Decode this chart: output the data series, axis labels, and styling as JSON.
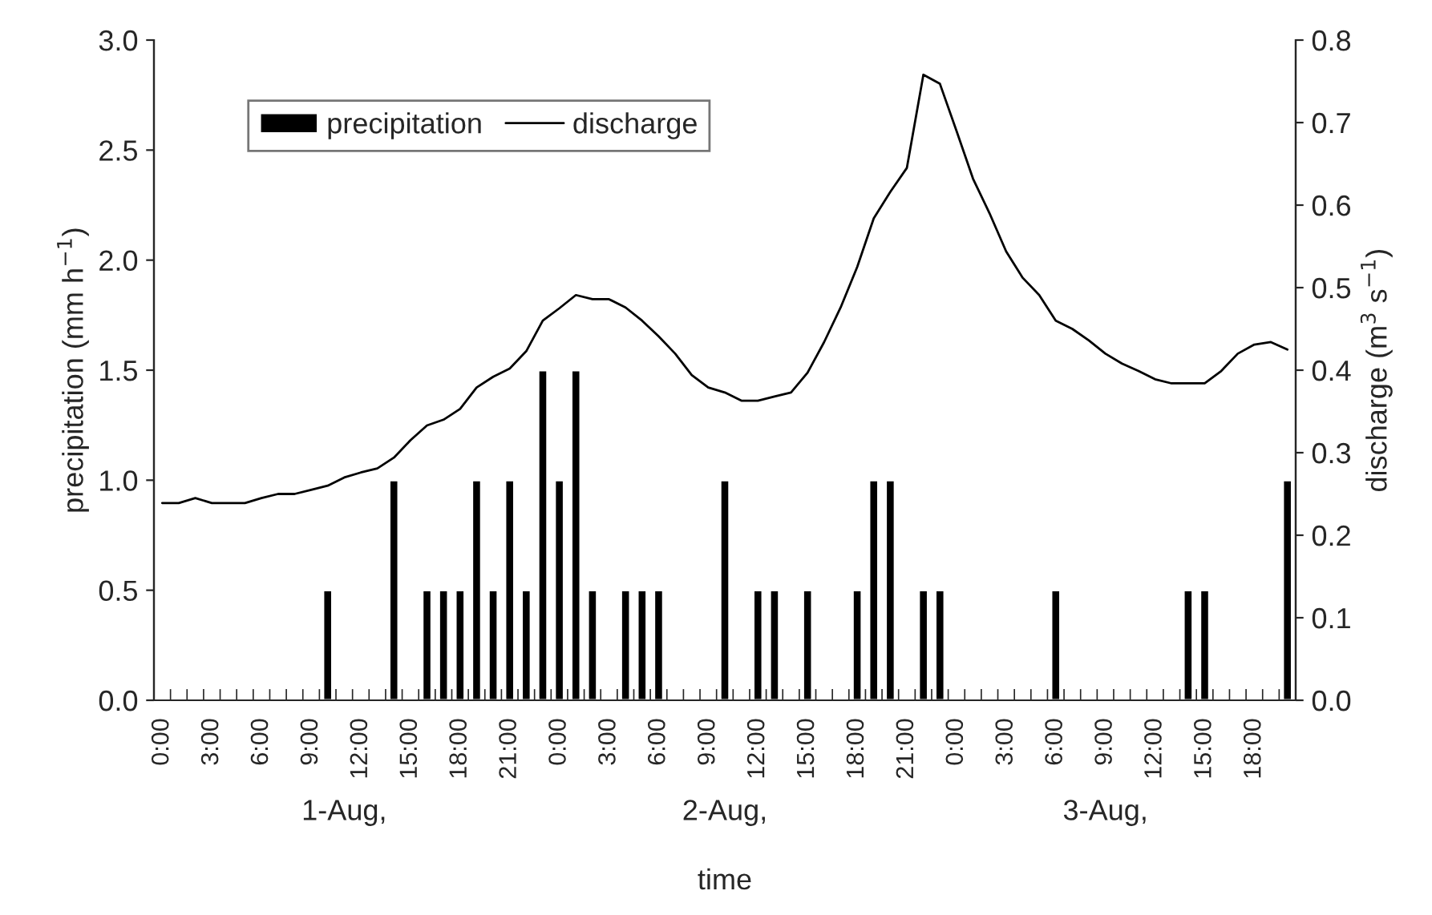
{
  "chart_data": {
    "type": "bar",
    "xlabel": "time",
    "ylabel": "precipitation (mm h$^{−1}$)",
    "y2label": "discharge (m$^{3}$ s$^{−1}$)",
    "categories": [
      "0:00",
      null,
      null,
      "3:00",
      null,
      null,
      "6:00",
      null,
      null,
      "9:00",
      null,
      null,
      "12:00",
      null,
      null,
      "15:00",
      null,
      null,
      "18:00",
      null,
      null,
      "21:00",
      null,
      null,
      "0:00",
      null,
      null,
      "3:00",
      null,
      null,
      "6:00",
      null,
      null,
      "9:00",
      null,
      null,
      "12:00",
      null,
      null,
      "15:00",
      null,
      null,
      "18:00",
      null,
      null,
      "21:00",
      null,
      null,
      "0:00",
      null,
      null,
      "3:00",
      null,
      null,
      "6:00",
      null,
      null,
      "9:00",
      null,
      null,
      "12:00",
      null,
      null,
      "15:00",
      null,
      null,
      "18:00",
      null,
      null
    ],
    "series": [
      {
        "name": "precipitation",
        "color": "#000000",
        "values": [
          0,
          0,
          0,
          0,
          0,
          0,
          0,
          0,
          0,
          0,
          0.5,
          0,
          0,
          0,
          1.0,
          0,
          0.5,
          0.5,
          0.5,
          1.0,
          0.5,
          1.0,
          0.5,
          1.5,
          1.0,
          1.5,
          0.5,
          0,
          0.5,
          0.5,
          0.5,
          0,
          0,
          0,
          1.0,
          0,
          0.5,
          0.5,
          0,
          0.5,
          0,
          0,
          0.5,
          1.0,
          1.0,
          0,
          0.5,
          0.5,
          0,
          0,
          0,
          0,
          0,
          0,
          0.5,
          0,
          0,
          0,
          0,
          0,
          0,
          0,
          0.5,
          0.5,
          0,
          0,
          0,
          0,
          1.0
        ]
      },
      {
        "name": "discharge",
        "type": "line",
        "axis": "y2",
        "color": "#000000",
        "values": [
          0.239,
          0.239,
          0.245,
          0.239,
          0.239,
          0.239,
          0.245,
          0.25,
          0.25,
          0.255,
          0.26,
          0.27,
          0.276,
          0.281,
          0.294,
          0.315,
          0.333,
          0.34,
          0.353,
          0.379,
          0.392,
          0.402,
          0.423,
          0.46,
          0.475,
          0.491,
          0.486,
          0.486,
          0.476,
          0.46,
          0.441,
          0.42,
          0.394,
          0.379,
          0.373,
          0.363,
          0.363,
          0.368,
          0.373,
          0.397,
          0.434,
          0.476,
          0.525,
          0.584,
          0.616,
          0.645,
          0.758,
          0.747,
          0.69,
          0.632,
          0.59,
          0.544,
          0.512,
          0.491,
          0.46,
          0.45,
          0.436,
          0.42,
          0.408,
          0.399,
          0.389,
          0.384,
          0.384,
          0.384,
          0.399,
          0.42,
          0.431,
          0.434,
          0.425
        ]
      }
    ],
    "ylim": [
      0,
      3
    ],
    "yticks": [
      {
        "value": 0,
        "label": "0.0"
      },
      {
        "value": 0.5,
        "label": "0.5"
      },
      {
        "value": 1,
        "label": "1.0"
      },
      {
        "value": 1.5,
        "label": "1.5"
      },
      {
        "value": 2,
        "label": "2.0"
      },
      {
        "value": 2.5,
        "label": "2.5"
      },
      {
        "value": 3,
        "label": "3.0"
      }
    ],
    "y2lim": [
      0,
      0.8
    ],
    "y2ticks": [
      {
        "value": 0,
        "label": "0.0"
      },
      0.1,
      0.2,
      0.3,
      0.4,
      0.5,
      0.6,
      0.7,
      0.8
    ],
    "annotations": [
      "1-Aug,",
      "2-Aug,",
      "3-Aug,"
    ],
    "legend": "top left",
    "grid": false,
    "marker": "none",
    "line_style": "solid"
  }
}
